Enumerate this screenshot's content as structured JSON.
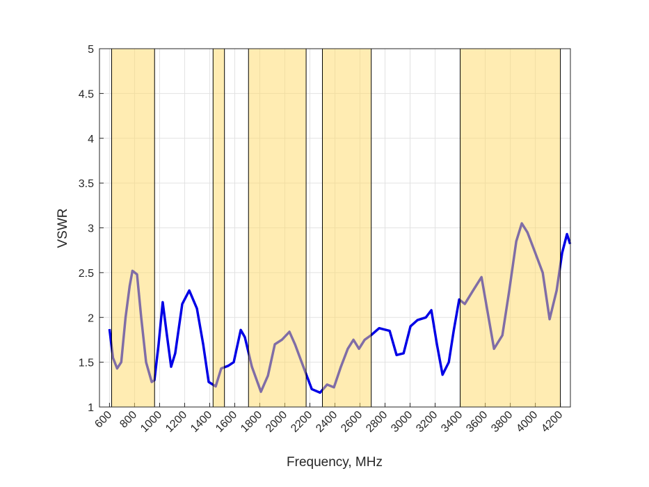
{
  "chart_data": {
    "type": "line",
    "xlabel": "Frequency, MHz",
    "ylabel": "VSWR",
    "xlim": [
      520,
      4280
    ],
    "ylim": [
      1,
      5
    ],
    "xticks": [
      600,
      800,
      1000,
      1200,
      1400,
      1600,
      1800,
      2000,
      2200,
      2400,
      2600,
      2800,
      3000,
      3200,
      3400,
      3600,
      3800,
      4000,
      4200
    ],
    "yticks": [
      1,
      1.5,
      2,
      2.5,
      3,
      3.5,
      4,
      4.5,
      5
    ],
    "grid": true,
    "shaded_ranges": [
      [
        617,
        960
      ],
      [
        1427,
        1518
      ],
      [
        1710,
        2170
      ],
      [
        2300,
        2690
      ],
      [
        3400,
        4200
      ]
    ],
    "shade_color": "#ffd966",
    "x": [
      600,
      628,
      661,
      694,
      728,
      761,
      783,
      820,
      853,
      892,
      937,
      959,
      992,
      1025,
      1059,
      1092,
      1125,
      1181,
      1237,
      1298,
      1348,
      1392,
      1448,
      1492,
      1548,
      1592,
      1648,
      1681,
      1737,
      1809,
      1865,
      1920,
      1976,
      2037,
      2081,
      2148,
      2215,
      2281,
      2337,
      2392,
      2448,
      2503,
      2548,
      2592,
      2637,
      2687,
      2753,
      2837,
      2892,
      2948,
      3003,
      3059,
      3126,
      3170,
      3214,
      3259,
      3309,
      3348,
      3392,
      3437,
      3503,
      3570,
      3614,
      3670,
      3737,
      3792,
      3848,
      3892,
      3937,
      3992,
      4059,
      4114,
      4170,
      4214,
      4253,
      4278
    ],
    "series": [
      {
        "color": "#0000e6",
        "values": [
          1.87,
          1.55,
          1.43,
          1.5,
          2.0,
          2.35,
          2.52,
          2.48,
          2.0,
          1.5,
          1.28,
          1.3,
          1.7,
          2.17,
          1.8,
          1.45,
          1.6,
          2.15,
          2.3,
          2.1,
          1.7,
          1.28,
          1.23,
          1.43,
          1.46,
          1.5,
          1.86,
          1.78,
          1.45,
          1.17,
          1.35,
          1.7,
          1.75,
          1.84,
          1.7,
          1.45,
          1.2,
          1.16,
          1.25,
          1.22,
          1.45,
          1.65,
          1.75,
          1.65,
          1.75,
          1.8,
          1.88,
          1.85,
          1.58,
          1.6,
          1.9,
          1.97,
          2.0,
          2.08,
          1.7,
          1.36,
          1.5,
          1.85,
          2.2,
          2.15,
          2.3,
          2.45,
          2.1,
          1.65,
          1.8,
          2.3,
          2.85,
          3.05,
          2.95,
          2.75,
          2.5,
          1.98,
          2.3,
          2.72,
          2.93,
          2.82
        ]
      }
    ]
  }
}
